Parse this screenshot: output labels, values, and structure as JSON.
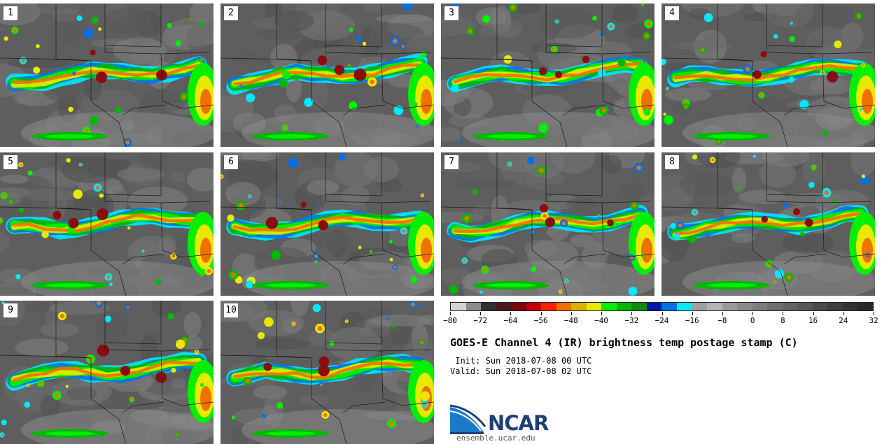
{
  "panels": [
    {
      "label": "1"
    },
    {
      "label": "2"
    },
    {
      "label": "3"
    },
    {
      "label": "4"
    },
    {
      "label": "5"
    },
    {
      "label": "6"
    },
    {
      "label": "7"
    },
    {
      "label": "8"
    },
    {
      "label": "9"
    },
    {
      "label": "10"
    }
  ],
  "colorbar": {
    "colors": [
      "#d4d4d4",
      "#8c8c8c",
      "#303030",
      "#4a1a1a",
      "#7a0a0a",
      "#c00000",
      "#ff2000",
      "#f07000",
      "#d8b400",
      "#e8e800",
      "#00f000",
      "#00b800",
      "#108c10",
      "#0018a8",
      "#0070e8",
      "#00e8ff",
      "#a0a0a0",
      "#b4b4b4",
      "#9a9a9a",
      "#8a8a8a",
      "#7c7c7c",
      "#6e6e6e",
      "#626262",
      "#565656",
      "#4a4a4a",
      "#3e3e3e",
      "#323232",
      "#282828"
    ],
    "tick_labels": [
      "−80",
      "−72",
      "−64",
      "−56",
      "−48",
      "−40",
      "−32",
      "−24",
      "−16",
      "−8",
      "0",
      "8",
      "16",
      "24",
      "32"
    ]
  },
  "title": "GOES-E Channel 4 (IR) brightness temp postage stamp (C)",
  "init_line": " Init: Sun 2018-07-08 00 UTC",
  "valid_line": "Valid: Sun 2018-07-08 02 UTC",
  "logo": {
    "name": "NCAR",
    "url": "ensemble.ucar.edu"
  }
}
